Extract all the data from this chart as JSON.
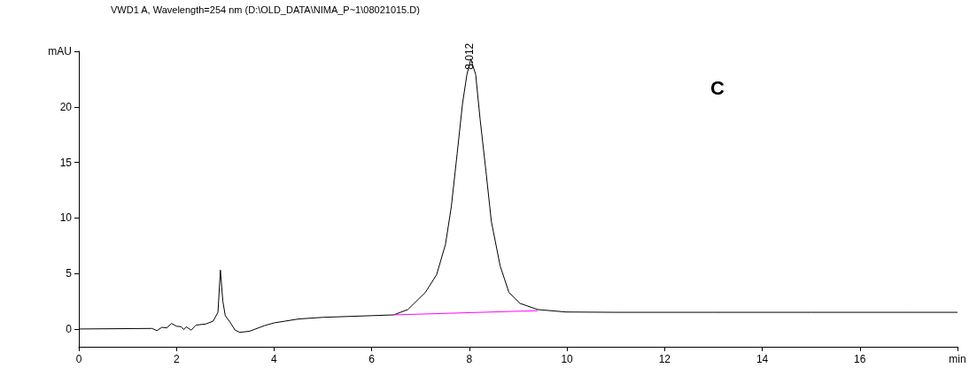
{
  "chart_data": {
    "type": "line",
    "title": "VWD1 A, Wavelength=254 nm (D:\\OLD_DATA\\NIMA_P~1\\08021015.D)",
    "xlim": [
      0,
      18
    ],
    "xticks": [
      0,
      2,
      4,
      6,
      8,
      10,
      12,
      14,
      16,
      {
        "value": 18,
        "label": "min"
      }
    ],
    "ylim": [
      -1.6,
      25
    ],
    "yticks": [
      0,
      5,
      10,
      15,
      20,
      {
        "value": 25,
        "label": "mAU"
      }
    ],
    "grid": false,
    "marker": "none",
    "line_style": "solid",
    "annotations": [
      {
        "text": "8.012",
        "x": 8.012,
        "y": 24.3
      },
      "C"
    ],
    "series": [
      {
        "color": "#000000",
        "x": [
          0,
          1.5,
          1.6,
          1.7,
          1.8,
          1.9,
          2.0,
          2.1,
          2.15,
          2.2,
          2.3,
          2.4,
          2.6,
          2.75,
          2.85,
          2.9,
          2.95,
          3.0,
          3.1,
          3.2,
          3.3,
          3.5,
          3.8,
          4.0,
          4.5,
          5,
          6,
          6.45,
          6.74,
          7.1,
          7.33,
          7.51,
          7.63,
          7.75,
          7.86,
          7.95,
          8.03,
          8.13,
          8.22,
          8.34,
          8.45,
          8.63,
          8.81,
          9.04,
          9.4,
          9.98,
          11,
          13,
          15,
          17,
          18
        ],
        "values": [
          0,
          0.05,
          -0.15,
          0.15,
          0.1,
          0.5,
          0.25,
          0.2,
          -0.05,
          0.2,
          -0.1,
          0.35,
          0.45,
          0.7,
          1.5,
          5.3,
          2.5,
          1.2,
          0.6,
          -0.1,
          -0.3,
          -0.2,
          0.3,
          0.55,
          0.9,
          1.05,
          1.2,
          1.27,
          1.75,
          3.3,
          4.9,
          7.6,
          11.0,
          15.8,
          20.3,
          22.9,
          24.3,
          22.9,
          18.9,
          14.2,
          9.7,
          5.7,
          3.3,
          2.3,
          1.75,
          1.53,
          1.5,
          1.5,
          1.5,
          1.5,
          1.5
        ]
      },
      {
        "color": "#ff00ff",
        "x": [
          6.45,
          9.4
        ],
        "values": [
          1.27,
          1.65
        ]
      }
    ]
  }
}
